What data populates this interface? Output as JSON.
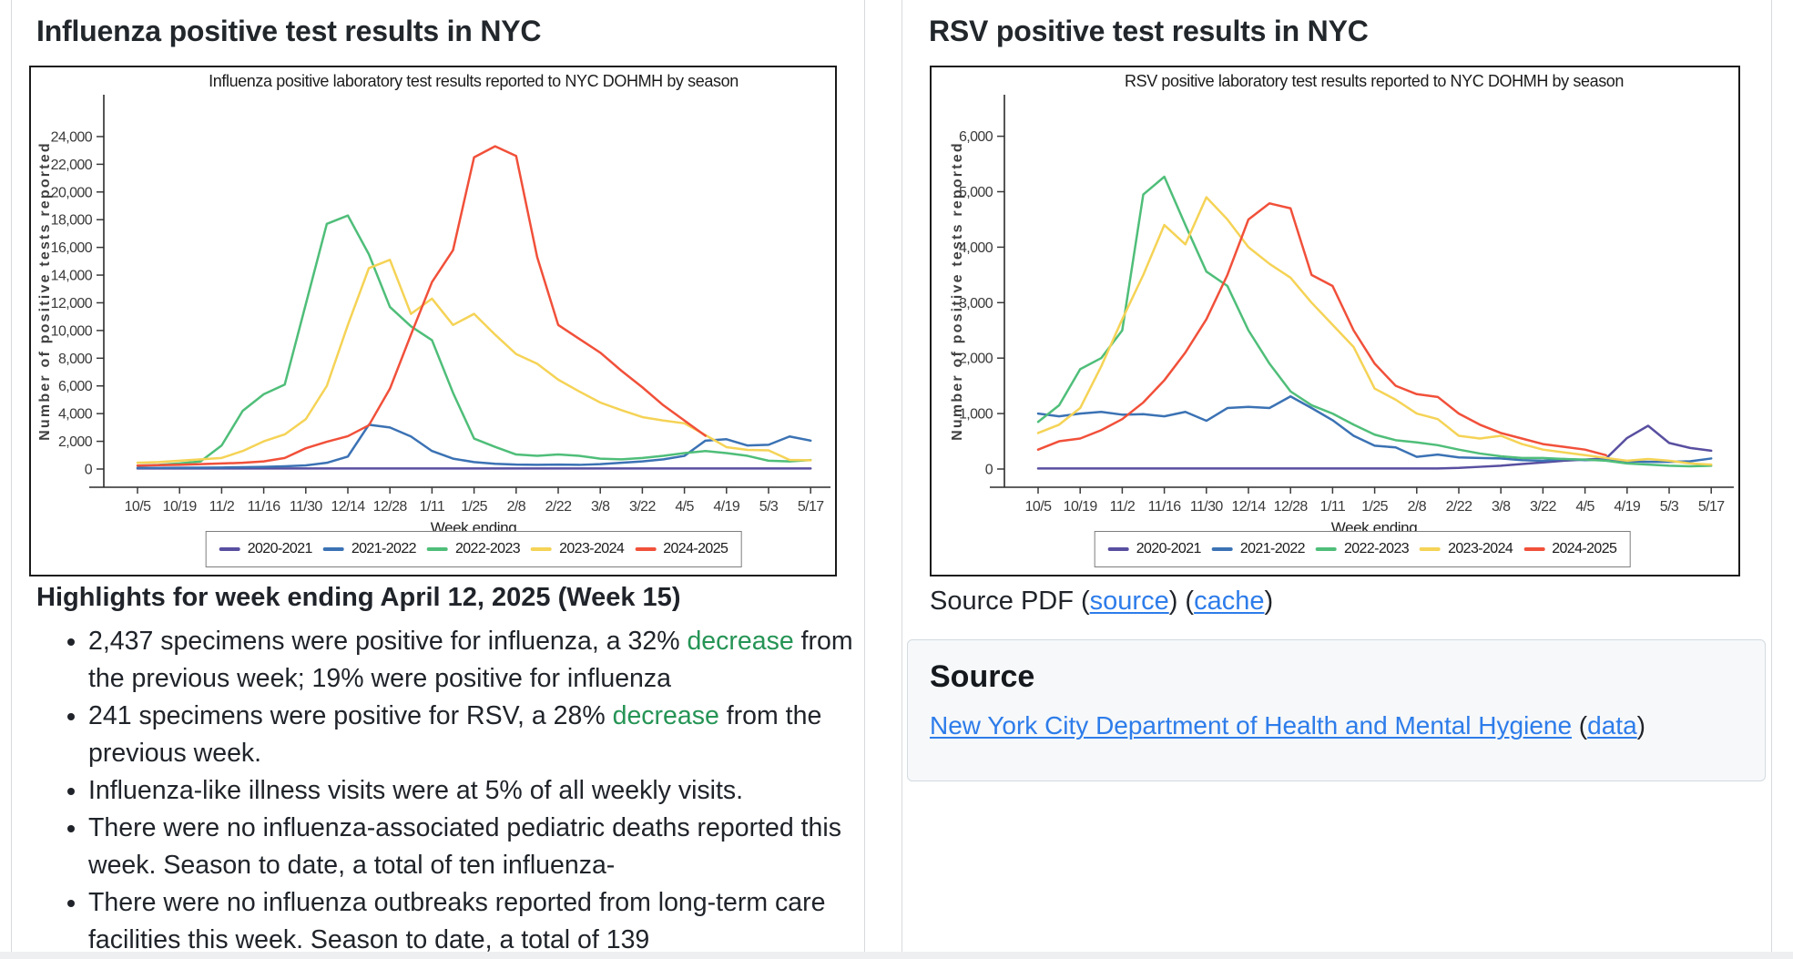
{
  "influenza_panel": {
    "title": "Influenza positive test results in NYC",
    "highlights_heading": "Highlights for week ending April 12, 2025 (Week 15)",
    "bullets": [
      {
        "pre": "2,437 specimens were positive for influenza, a 32% ",
        "em": "decrease",
        "post": " from the previous week; 19% were positive for influenza"
      },
      {
        "pre": "241 specimens were positive for RSV, a 28% ",
        "em": "decrease",
        "post": " from the previous week."
      },
      {
        "pre": "Influenza-like illness visits were at 5% of all weekly visits.",
        "em": "",
        "post": ""
      },
      {
        "pre": "There were no influenza-associated pediatric deaths reported this week. Season to date, a total of ten influenza-",
        "em": "",
        "post": ""
      },
      {
        "pre": "There were no influenza outbreaks reported from long-term care facilities this week. Season to date, a total of 139",
        "em": "",
        "post": ""
      }
    ]
  },
  "rsv_panel": {
    "title": "RSV positive test results in NYC",
    "source_pdf": {
      "prefix": "Source PDF (",
      "source_label": "source",
      "mid": ") (",
      "cache_label": "cache",
      "suffix": ")"
    },
    "source_section": {
      "heading": "Source",
      "org_label": "New York City Department of Health and Mental Hygiene",
      "paren_open": " (",
      "data_label": "data",
      "paren_close": ")"
    }
  },
  "colors": {
    "season_2020_2021": "#584fa0",
    "season_2021_2022": "#3b72b4",
    "season_2022_2023": "#4fbe79",
    "season_2023_2024": "#f5d356",
    "season_2024_2025": "#f1503a",
    "link_blue": "#2d7cea",
    "highlight_green": "#259455"
  },
  "chart_data": [
    {
      "type": "line",
      "title": "Influenza positive laboratory test results reported to NYC DOHMH by season",
      "xlabel": "Week ending",
      "ylabel": "Number of positive tests reported",
      "ylim": [
        0,
        26000
      ],
      "yticks": [
        0,
        2000,
        4000,
        6000,
        8000,
        10000,
        12000,
        14000,
        16000,
        18000,
        20000,
        22000,
        24000
      ],
      "x_tick_labels": [
        "10/5",
        "10/19",
        "11/2",
        "11/16",
        "11/30",
        "12/14",
        "12/28",
        "1/11",
        "1/25",
        "2/8",
        "2/22",
        "3/8",
        "3/22",
        "4/5",
        "4/19",
        "5/3",
        "5/17"
      ],
      "weeks": [
        "10/5",
        "10/12",
        "10/19",
        "10/26",
        "11/2",
        "11/9",
        "11/16",
        "11/23",
        "11/30",
        "12/7",
        "12/14",
        "12/21",
        "12/28",
        "1/4",
        "1/11",
        "1/18",
        "1/25",
        "2/1",
        "2/8",
        "2/15",
        "2/22",
        "3/1",
        "3/8",
        "3/15",
        "3/22",
        "3/29",
        "4/5",
        "4/12",
        "4/19",
        "4/26",
        "5/3",
        "5/10",
        "5/17"
      ],
      "legend_position": "bottom",
      "series": [
        {
          "name": "2020-2021",
          "color": "#584fa0",
          "values": [
            40,
            40,
            40,
            40,
            40,
            40,
            40,
            40,
            40,
            40,
            40,
            40,
            40,
            40,
            40,
            40,
            40,
            40,
            40,
            40,
            40,
            40,
            40,
            40,
            40,
            40,
            40,
            40,
            40,
            40,
            40,
            40,
            40
          ]
        },
        {
          "name": "2021-2022",
          "color": "#3b72b4",
          "values": [
            80,
            80,
            90,
            100,
            110,
            130,
            160,
            200,
            260,
            450,
            900,
            3200,
            3000,
            2350,
            1300,
            750,
            500,
            380,
            320,
            300,
            320,
            300,
            350,
            450,
            550,
            700,
            950,
            2050,
            2150,
            1700,
            1750,
            2350,
            2050
          ]
        },
        {
          "name": "2022-2023",
          "color": "#4fbe79",
          "values": [
            250,
            300,
            400,
            550,
            1700,
            4200,
            5400,
            6100,
            11900,
            17700,
            18300,
            15500,
            11700,
            10300,
            9300,
            5500,
            2200,
            1600,
            1050,
            950,
            1050,
            950,
            750,
            700,
            800,
            950,
            1150,
            1300,
            1150,
            950,
            600,
            550,
            650
          ]
        },
        {
          "name": "2023-2024",
          "color": "#f5d356",
          "values": [
            450,
            500,
            600,
            700,
            800,
            1300,
            2000,
            2500,
            3600,
            6000,
            10400,
            14500,
            15100,
            11200,
            12300,
            10400,
            11200,
            9700,
            8300,
            7600,
            6450,
            5600,
            4800,
            4250,
            3750,
            3500,
            3300,
            2450,
            1580,
            1380,
            1350,
            660,
            630
          ]
        },
        {
          "name": "2024-2025",
          "color": "#f1503a",
          "values": [
            250,
            280,
            300,
            350,
            400,
            450,
            550,
            800,
            1500,
            1970,
            2370,
            3160,
            5800,
            9700,
            13500,
            15800,
            22500,
            23300,
            22600,
            15300,
            10400,
            9400,
            8400,
            7100,
            5900,
            4600,
            3500,
            2400,
            null,
            null,
            null,
            null,
            null
          ]
        }
      ]
    },
    {
      "type": "line",
      "title": "RSV positive laboratory test results reported to NYC DOHMH by season",
      "xlabel": "Week ending",
      "ylabel": "Number of positive tests reported",
      "ylim": [
        0,
        6600
      ],
      "yticks": [
        0,
        1000,
        2000,
        3000,
        4000,
        5000,
        6000
      ],
      "x_tick_labels": [
        "10/5",
        "10/19",
        "11/2",
        "11/16",
        "11/30",
        "12/14",
        "12/28",
        "1/11",
        "1/25",
        "2/8",
        "2/22",
        "3/8",
        "3/22",
        "4/5",
        "4/19",
        "5/3",
        "5/17"
      ],
      "weeks": [
        "10/5",
        "10/12",
        "10/19",
        "10/26",
        "11/2",
        "11/9",
        "11/16",
        "11/23",
        "11/30",
        "12/7",
        "12/14",
        "12/21",
        "12/28",
        "1/4",
        "1/11",
        "1/18",
        "1/25",
        "2/1",
        "2/8",
        "2/15",
        "2/22",
        "3/1",
        "3/8",
        "3/15",
        "3/22",
        "3/29",
        "4/5",
        "4/12",
        "4/19",
        "4/26",
        "5/3",
        "5/10",
        "5/17"
      ],
      "legend_position": "bottom",
      "series": [
        {
          "name": "2020-2021",
          "color": "#584fa0",
          "values": [
            10,
            10,
            10,
            10,
            10,
            10,
            10,
            10,
            10,
            10,
            10,
            10,
            10,
            10,
            10,
            10,
            10,
            10,
            10,
            10,
            20,
            40,
            60,
            90,
            120,
            150,
            170,
            190,
            560,
            780,
            470,
            380,
            330
          ]
        },
        {
          "name": "2021-2022",
          "color": "#3b72b4",
          "values": [
            1000,
            950,
            1000,
            1030,
            980,
            990,
            950,
            1030,
            870,
            1100,
            1120,
            1100,
            1310,
            1100,
            880,
            600,
            420,
            390,
            220,
            260,
            210,
            200,
            190,
            160,
            150,
            180,
            160,
            170,
            140,
            130,
            130,
            140,
            190
          ]
        },
        {
          "name": "2022-2023",
          "color": "#4fbe79",
          "values": [
            850,
            1150,
            1800,
            2000,
            2500,
            4950,
            5270,
            4400,
            3560,
            3300,
            2500,
            1900,
            1400,
            1150,
            1000,
            800,
            620,
            520,
            480,
            430,
            350,
            280,
            230,
            200,
            200,
            180,
            170,
            150,
            100,
            80,
            60,
            50,
            60
          ]
        },
        {
          "name": "2023-2024",
          "color": "#f5d356",
          "values": [
            650,
            800,
            1100,
            1850,
            2700,
            3500,
            4400,
            4050,
            4900,
            4500,
            4000,
            3700,
            3450,
            3000,
            2600,
            2200,
            1450,
            1250,
            1000,
            900,
            600,
            550,
            600,
            450,
            350,
            300,
            250,
            200,
            150,
            180,
            150,
            100,
            80
          ]
        },
        {
          "name": "2024-2025",
          "color": "#f1503a",
          "values": [
            350,
            500,
            550,
            700,
            900,
            1200,
            1600,
            2100,
            2700,
            3500,
            4500,
            4790,
            4700,
            3500,
            3300,
            2500,
            1900,
            1500,
            1350,
            1300,
            1000,
            800,
            650,
            550,
            450,
            400,
            350,
            250,
            null,
            null,
            null,
            null,
            null
          ]
        }
      ]
    }
  ]
}
